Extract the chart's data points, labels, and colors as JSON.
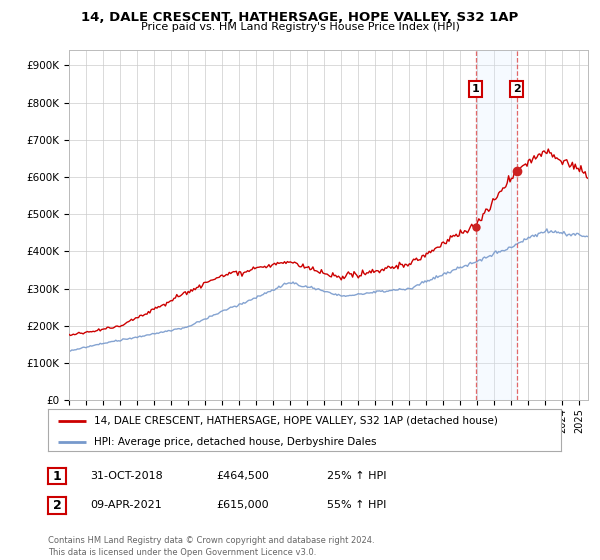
{
  "title": "14, DALE CRESCENT, HATHERSAGE, HOPE VALLEY, S32 1AP",
  "subtitle": "Price paid vs. HM Land Registry's House Price Index (HPI)",
  "legend_label_red": "14, DALE CRESCENT, HATHERSAGE, HOPE VALLEY, S32 1AP (detached house)",
  "legend_label_blue": "HPI: Average price, detached house, Derbyshire Dales",
  "transaction1_label": "1",
  "transaction1_date": "31-OCT-2018",
  "transaction1_price": "£464,500",
  "transaction1_hpi": "25% ↑ HPI",
  "transaction1_x": 2018.9,
  "transaction2_label": "2",
  "transaction2_date": "09-APR-2021",
  "transaction2_price": "£615,000",
  "transaction2_hpi": "55% ↑ HPI",
  "transaction2_x": 2021.3,
  "transaction1_y": 464500,
  "transaction2_y": 615000,
  "ylim": [
    0,
    940000
  ],
  "yticks": [
    0,
    100000,
    200000,
    300000,
    400000,
    500000,
    600000,
    700000,
    800000,
    900000
  ],
  "xlim_start": 1995.0,
  "xlim_end": 2025.5,
  "background_color": "#ffffff",
  "grid_color": "#cccccc",
  "red_color": "#cc0000",
  "blue_color": "#7799cc",
  "vline_color": "#dd4444",
  "span_color": "#ddeeff",
  "footnote": "Contains HM Land Registry data © Crown copyright and database right 2024.\nThis data is licensed under the Open Government Licence v3.0."
}
